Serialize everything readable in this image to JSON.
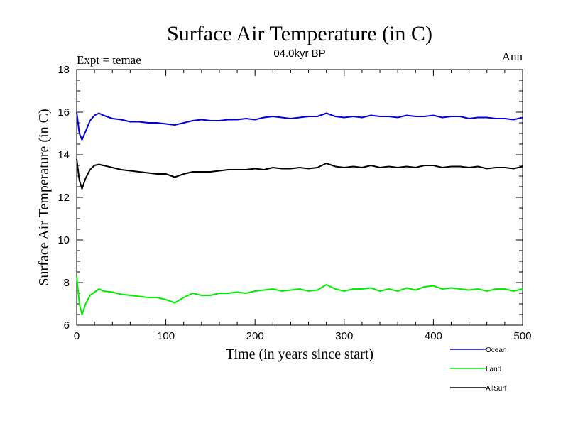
{
  "chart_data": {
    "type": "line",
    "title": "Surface Air Temperature (in C)",
    "subtitle": "04.0kyr BP",
    "top_left_label": "Expt = temae",
    "top_right_label": "Ann",
    "xlabel": "Time (in years since start)",
    "ylabel": "Surface Air Temperature (in C)",
    "xlim": [
      0,
      500
    ],
    "ylim": [
      6,
      18
    ],
    "x_ticks": [
      "0",
      "100",
      "200",
      "300",
      "400",
      "500"
    ],
    "y_ticks": [
      "6",
      "8",
      "10",
      "12",
      "14",
      "16",
      "18"
    ],
    "x_tick_values": [
      0,
      100,
      200,
      300,
      400,
      500
    ],
    "y_tick_values": [
      6,
      8,
      10,
      12,
      14,
      16,
      18
    ],
    "grid": false,
    "legend_position": "bottom-right",
    "series": [
      {
        "name": "Ocean",
        "color": "#0000dd",
        "x": [
          0,
          3,
          6,
          10,
          15,
          20,
          25,
          30,
          40,
          50,
          60,
          70,
          80,
          90,
          100,
          110,
          120,
          130,
          140,
          150,
          160,
          170,
          180,
          190,
          200,
          210,
          220,
          230,
          240,
          250,
          260,
          270,
          280,
          290,
          300,
          310,
          320,
          330,
          340,
          350,
          360,
          370,
          380,
          390,
          400,
          410,
          420,
          430,
          440,
          450,
          460,
          470,
          480,
          490,
          500
        ],
        "values": [
          16.0,
          15.0,
          14.7,
          15.1,
          15.6,
          15.85,
          15.95,
          15.85,
          15.7,
          15.65,
          15.55,
          15.55,
          15.5,
          15.5,
          15.45,
          15.4,
          15.5,
          15.6,
          15.65,
          15.6,
          15.6,
          15.65,
          15.65,
          15.7,
          15.65,
          15.75,
          15.8,
          15.75,
          15.7,
          15.75,
          15.8,
          15.8,
          15.95,
          15.8,
          15.75,
          15.8,
          15.75,
          15.85,
          15.8,
          15.8,
          15.75,
          15.85,
          15.8,
          15.8,
          15.85,
          15.75,
          15.8,
          15.8,
          15.7,
          15.75,
          15.75,
          15.7,
          15.7,
          15.65,
          15.75
        ]
      },
      {
        "name": "Land",
        "color": "#00ee00",
        "x": [
          0,
          3,
          6,
          10,
          15,
          20,
          25,
          30,
          40,
          50,
          60,
          70,
          80,
          90,
          100,
          110,
          120,
          130,
          140,
          150,
          160,
          170,
          180,
          190,
          200,
          210,
          220,
          230,
          240,
          250,
          260,
          270,
          280,
          290,
          300,
          310,
          320,
          330,
          340,
          350,
          360,
          370,
          380,
          390,
          400,
          410,
          420,
          430,
          440,
          450,
          460,
          470,
          480,
          490,
          500
        ],
        "values": [
          8.3,
          7.0,
          6.5,
          7.0,
          7.4,
          7.55,
          7.7,
          7.6,
          7.55,
          7.45,
          7.4,
          7.35,
          7.3,
          7.3,
          7.2,
          7.05,
          7.3,
          7.5,
          7.4,
          7.4,
          7.5,
          7.5,
          7.55,
          7.5,
          7.6,
          7.65,
          7.7,
          7.6,
          7.65,
          7.7,
          7.6,
          7.65,
          7.9,
          7.7,
          7.6,
          7.7,
          7.7,
          7.75,
          7.6,
          7.7,
          7.6,
          7.75,
          7.65,
          7.8,
          7.85,
          7.7,
          7.75,
          7.7,
          7.65,
          7.7,
          7.6,
          7.7,
          7.7,
          7.6,
          7.7
        ]
      },
      {
        "name": "AllSurf",
        "color": "#000000",
        "x": [
          0,
          3,
          6,
          10,
          15,
          20,
          25,
          30,
          40,
          50,
          60,
          70,
          80,
          90,
          100,
          110,
          120,
          130,
          140,
          150,
          160,
          170,
          180,
          190,
          200,
          210,
          220,
          230,
          240,
          250,
          260,
          270,
          280,
          290,
          300,
          310,
          320,
          330,
          340,
          350,
          360,
          370,
          380,
          390,
          400,
          410,
          420,
          430,
          440,
          450,
          460,
          470,
          480,
          490,
          500
        ],
        "values": [
          13.8,
          12.8,
          12.4,
          12.9,
          13.3,
          13.5,
          13.55,
          13.5,
          13.4,
          13.3,
          13.25,
          13.2,
          13.15,
          13.1,
          13.1,
          12.95,
          13.1,
          13.2,
          13.2,
          13.2,
          13.25,
          13.3,
          13.3,
          13.3,
          13.35,
          13.3,
          13.4,
          13.35,
          13.35,
          13.4,
          13.35,
          13.4,
          13.6,
          13.45,
          13.4,
          13.45,
          13.4,
          13.5,
          13.4,
          13.45,
          13.4,
          13.45,
          13.4,
          13.5,
          13.5,
          13.4,
          13.45,
          13.45,
          13.4,
          13.45,
          13.35,
          13.4,
          13.4,
          13.35,
          13.45
        ]
      }
    ]
  }
}
